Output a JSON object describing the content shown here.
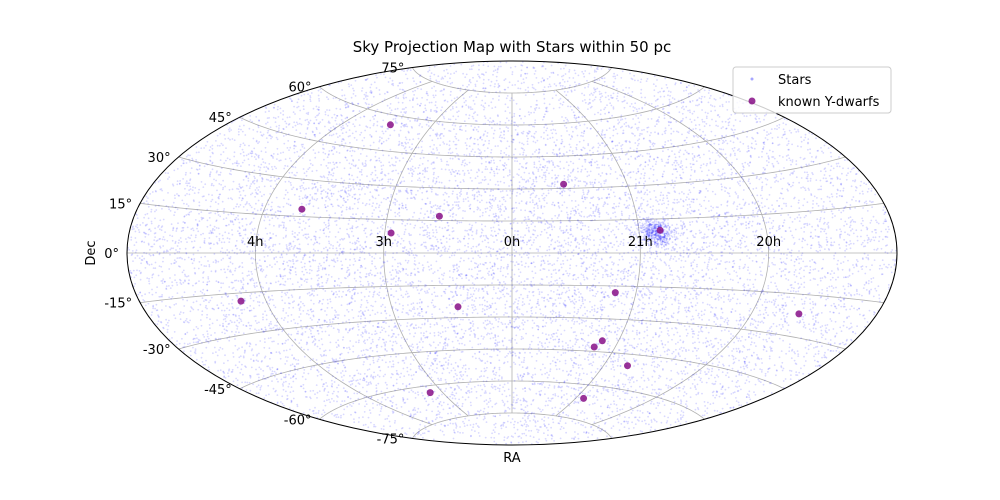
{
  "chart_data": {
    "type": "scatter",
    "projection": "aitoff",
    "title": "Sky Projection Map with Stars within 50 pc",
    "xlabel": "RA",
    "ylabel": "Dec",
    "grid": true,
    "legend_position": "top-right",
    "xlim_deg": [
      -180,
      180
    ],
    "ylim_deg": [
      -90,
      90
    ],
    "ra_ticks": [
      {
        "label": "4h",
        "lon": -120
      },
      {
        "label": "3h",
        "lon": -60
      },
      {
        "label": "0h",
        "lon": 0
      },
      {
        "label": "21h",
        "lon": 60
      },
      {
        "label": "20h",
        "lon": 120
      }
    ],
    "dec_ticks": [
      {
        "label": "-75°",
        "lat": -75
      },
      {
        "label": "-60°",
        "lat": -60
      },
      {
        "label": "-45°",
        "lat": -45
      },
      {
        "label": "-30°",
        "lat": -30
      },
      {
        "label": "-15°",
        "lat": -15
      },
      {
        "label": "0°",
        "lat": 0
      },
      {
        "label": "15°",
        "lat": 15
      },
      {
        "label": "30°",
        "lat": 30
      },
      {
        "label": "45°",
        "lat": 45
      },
      {
        "label": "60°",
        "lat": 60
      },
      {
        "label": "75°",
        "lat": 75
      }
    ],
    "series": [
      {
        "name": "Stars",
        "color": "#0000ff",
        "marker": "dot",
        "alpha": 0.15,
        "count_approx": 12000,
        "distribution": "uniform on sphere with a dense clump",
        "clump": {
          "lon": 68,
          "lat": 9,
          "spread_deg": 4
        }
      },
      {
        "name": "known Y-dwarfs",
        "color": "#800080",
        "marker": "circle",
        "points": [
          {
            "lon": -89,
            "lat": 56
          },
          {
            "lon": -102,
            "lat": 18
          },
          {
            "lon": -57,
            "lat": 9
          },
          {
            "lon": -35,
            "lat": 17
          },
          {
            "lon": 27,
            "lat": 32
          },
          {
            "lon": 70,
            "lat": 10
          },
          {
            "lon": -132,
            "lat": -18
          },
          {
            "lon": -27,
            "lat": -25
          },
          {
            "lon": 50,
            "lat": -18
          },
          {
            "lon": 143,
            "lat": -22
          },
          {
            "lon": 51,
            "lat": -40
          },
          {
            "lon": 48,
            "lat": -43
          },
          {
            "lon": 75,
            "lat": -50
          },
          {
            "lon": -70,
            "lat": -63
          },
          {
            "lon": 67,
            "lat": -66
          }
        ]
      }
    ]
  }
}
